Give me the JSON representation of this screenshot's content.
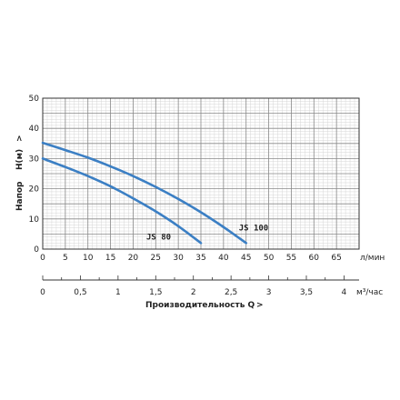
{
  "chart_data": {
    "type": "line",
    "ylabel": "Напор    Н(м)",
    "ylabel_arrow": ">",
    "ylim": [
      0,
      50
    ],
    "y_ticks": [
      0,
      10,
      20,
      30,
      40,
      50
    ],
    "x_primary": {
      "unit": "л/мин",
      "xlim": [
        0,
        70
      ],
      "ticks": [
        0,
        5,
        10,
        15,
        20,
        25,
        30,
        35,
        40,
        45,
        50,
        55,
        60,
        65
      ]
    },
    "x_secondary": {
      "unit": "м³/час",
      "xlim": [
        0,
        4.2
      ],
      "ticks": [
        {
          "value": 0,
          "label": "0"
        },
        {
          "value": 0.5,
          "label": "0,5"
        },
        {
          "value": 1,
          "label": "1"
        },
        {
          "value": 1.5,
          "label": "1,5"
        },
        {
          "value": 2,
          "label": "2"
        },
        {
          "value": 2.5,
          "label": "2,5"
        },
        {
          "value": 3,
          "label": "3"
        },
        {
          "value": 3.5,
          "label": "3,5"
        },
        {
          "value": 4,
          "label": "4"
        }
      ]
    },
    "xlabel": "Производительность Q",
    "xlabel_arrow": ">",
    "grid": true,
    "line_color": "#3b7fc4",
    "series": [
      {
        "name": "JS 80",
        "x": [
          0,
          5,
          10,
          15,
          20,
          25,
          30,
          35
        ],
        "y": [
          30,
          27.2,
          24.2,
          20.8,
          16.8,
          12.5,
          7.6,
          2
        ]
      },
      {
        "name": "JS 100",
        "x": [
          0,
          5,
          10,
          15,
          20,
          25,
          30,
          35,
          40,
          45
        ],
        "y": [
          35.2,
          32.8,
          30.3,
          27.4,
          24.2,
          20.6,
          16.6,
          12.2,
          7.3,
          2
        ]
      }
    ]
  }
}
